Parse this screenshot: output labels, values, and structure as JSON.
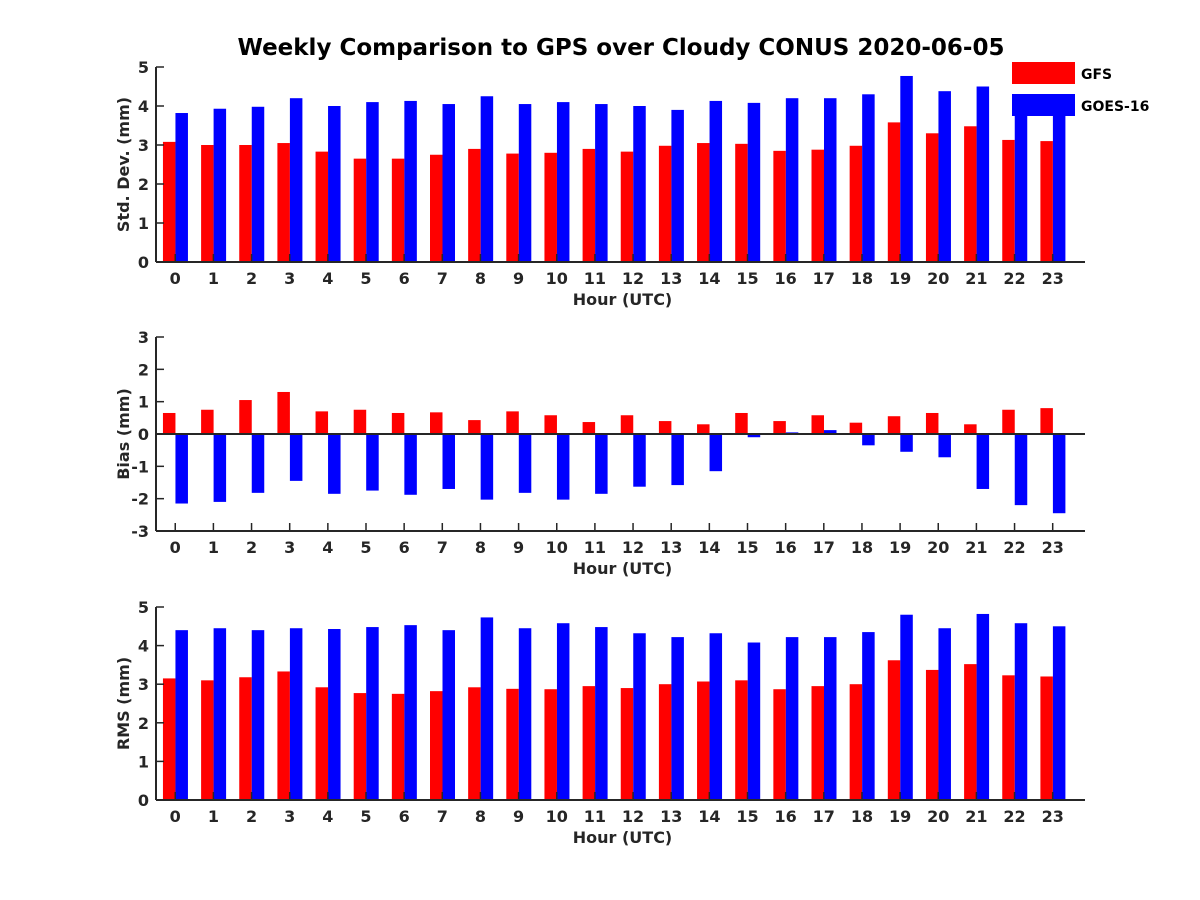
{
  "figure_title": "Weekly Comparison to GPS over Cloudy CONUS 2020-06-05",
  "legend": {
    "position": "top-right",
    "entries": [
      {
        "label": "GFS",
        "color": "#ff0000"
      },
      {
        "label": "GOES-16",
        "color": "#0000ff"
      }
    ]
  },
  "chart_data": [
    {
      "type": "bar",
      "title": "Weekly Comparison to GPS over Cloudy CONUS 2020-06-05",
      "xlabel": "Hour (UTC)",
      "ylabel": "Std. Dev. (mm)",
      "ylim": [
        0,
        5
      ],
      "yticks": [
        "0",
        "1",
        "2",
        "3",
        "4",
        "5"
      ],
      "categories": [
        "0",
        "1",
        "2",
        "3",
        "4",
        "5",
        "6",
        "7",
        "8",
        "9",
        "10",
        "11",
        "12",
        "13",
        "14",
        "15",
        "16",
        "17",
        "18",
        "19",
        "20",
        "21",
        "22",
        "23"
      ],
      "series": [
        {
          "name": "GFS",
          "color": "#ff0000",
          "values": [
            3.08,
            3.0,
            3.0,
            3.05,
            2.83,
            2.65,
            2.65,
            2.75,
            2.9,
            2.78,
            2.8,
            2.9,
            2.83,
            2.98,
            3.05,
            3.03,
            2.85,
            2.88,
            2.98,
            3.58,
            3.3,
            3.48,
            3.13,
            3.1
          ]
        },
        {
          "name": "GOES-16",
          "color": "#0000ff",
          "values": [
            3.82,
            3.93,
            3.98,
            4.2,
            4.0,
            4.1,
            4.13,
            4.05,
            4.25,
            4.05,
            4.1,
            4.05,
            4.0,
            3.9,
            4.13,
            4.08,
            4.2,
            4.2,
            4.3,
            4.77,
            4.38,
            4.5,
            4.0,
            4.03
          ]
        }
      ]
    },
    {
      "type": "bar",
      "xlabel": "Hour (UTC)",
      "ylabel": "Bias (mm)",
      "ylim": [
        -3,
        3
      ],
      "yticks": [
        "-3",
        "-2",
        "-1",
        "0",
        "1",
        "2",
        "3"
      ],
      "zero_line": true,
      "categories": [
        "0",
        "1",
        "2",
        "3",
        "4",
        "5",
        "6",
        "7",
        "8",
        "9",
        "10",
        "11",
        "12",
        "13",
        "14",
        "15",
        "16",
        "17",
        "18",
        "19",
        "20",
        "21",
        "22",
        "23"
      ],
      "series": [
        {
          "name": "GFS",
          "color": "#ff0000",
          "values": [
            0.65,
            0.75,
            1.05,
            1.3,
            0.7,
            0.75,
            0.65,
            0.67,
            0.43,
            0.7,
            0.58,
            0.37,
            0.58,
            0.4,
            0.3,
            0.65,
            0.4,
            0.58,
            0.35,
            0.55,
            0.65,
            0.3,
            0.75,
            0.8
          ]
        },
        {
          "name": "GOES-16",
          "color": "#0000ff",
          "values": [
            -2.15,
            -2.1,
            -1.82,
            -1.45,
            -1.85,
            -1.75,
            -1.88,
            -1.7,
            -2.03,
            -1.82,
            -2.03,
            -1.85,
            -1.63,
            -1.58,
            -1.15,
            -0.1,
            0.05,
            0.12,
            -0.35,
            -0.55,
            -0.72,
            -1.7,
            -2.2,
            -2.45
          ]
        }
      ]
    },
    {
      "type": "bar",
      "xlabel": "Hour (UTC)",
      "ylabel": "RMS (mm)",
      "ylim": [
        0,
        5
      ],
      "yticks": [
        "0",
        "1",
        "2",
        "3",
        "4",
        "5"
      ],
      "categories": [
        "0",
        "1",
        "2",
        "3",
        "4",
        "5",
        "6",
        "7",
        "8",
        "9",
        "10",
        "11",
        "12",
        "13",
        "14",
        "15",
        "16",
        "17",
        "18",
        "19",
        "20",
        "21",
        "22",
        "23"
      ],
      "series": [
        {
          "name": "GFS",
          "color": "#ff0000",
          "values": [
            3.15,
            3.1,
            3.18,
            3.33,
            2.92,
            2.77,
            2.75,
            2.82,
            2.92,
            2.88,
            2.87,
            2.95,
            2.9,
            3.0,
            3.07,
            3.1,
            2.87,
            2.95,
            3.0,
            3.62,
            3.37,
            3.52,
            3.23,
            3.2
          ]
        },
        {
          "name": "GOES-16",
          "color": "#0000ff",
          "values": [
            4.4,
            4.45,
            4.4,
            4.45,
            4.43,
            4.48,
            4.53,
            4.4,
            4.73,
            4.45,
            4.58,
            4.48,
            4.32,
            4.22,
            4.32,
            4.08,
            4.22,
            4.22,
            4.35,
            4.8,
            4.45,
            4.82,
            4.58,
            4.5
          ]
        }
      ]
    }
  ]
}
